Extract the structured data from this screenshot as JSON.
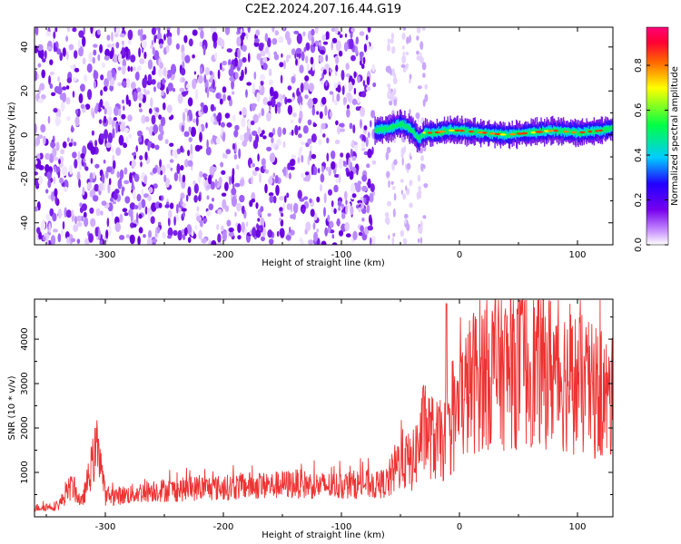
{
  "title": "C2E2.2024.207.16.44.G19",
  "chart_data": [
    {
      "type": "heatmap",
      "xlabel": "Height of straight line (km)",
      "ylabel": "Frequency (Hz)",
      "xlim": [
        -360,
        130
      ],
      "ylim": [
        -50,
        49
      ],
      "xticks": [
        -300,
        -200,
        -100,
        0,
        100
      ],
      "yticks": [
        -40,
        -20,
        0,
        20,
        40
      ],
      "grid": false,
      "colorbar": {
        "label": "Normalized spectral amplitude",
        "range": [
          0,
          0.97
        ],
        "ticks": [
          "0.0",
          "0.2",
          "0.4",
          "0.6",
          "0.8"
        ],
        "colors": [
          "#ffffff",
          "#cc99ff",
          "#7700ee",
          "#2200ff",
          "#00ccff",
          "#00ff44",
          "#ffff00",
          "#ff6600",
          "#ff0033",
          "#ff0077"
        ]
      },
      "regions": [
        {
          "x": [
            -360,
            -72
          ],
          "freq": [
            -50,
            49
          ],
          "description_value": 0.3
        },
        {
          "x": [
            -72,
            130
          ],
          "freq": [
            -3,
            4
          ],
          "description_value": 0.45
        }
      ],
      "signal_curve": {
        "x": [
          -72,
          -60,
          -50,
          -40,
          -35,
          -30,
          -20,
          -10,
          0,
          20,
          40,
          60,
          80,
          100,
          120,
          130
        ],
        "y": [
          2,
          3,
          5,
          2,
          -2,
          1,
          1,
          2,
          2,
          1,
          0,
          1,
          2,
          1,
          2,
          3
        ]
      }
    },
    {
      "type": "line",
      "xlabel": "Height of straight line (km)",
      "ylabel": "SNR (10 * v/v)",
      "xlim": [
        -360,
        130
      ],
      "ylim": [
        0,
        4900
      ],
      "xticks": [
        -300,
        -200,
        -100,
        0,
        100
      ],
      "yticks": [
        1000,
        2000,
        3000,
        4000
      ],
      "grid": false,
      "series": [
        {
          "color": "#ee3333",
          "x": [
            -360,
            -340,
            -328,
            -320,
            -306,
            -300,
            -280,
            -260,
            -240,
            -220,
            -200,
            -180,
            -160,
            -140,
            -120,
            -100,
            -80,
            -70,
            -60,
            -50,
            -40,
            -30,
            -20,
            -10,
            0,
            10,
            20,
            40,
            60,
            80,
            100,
            120,
            130
          ],
          "y": [
            200,
            250,
            700,
            300,
            1700,
            450,
            500,
            600,
            600,
            650,
            650,
            700,
            700,
            750,
            700,
            700,
            750,
            700,
            800,
            1300,
            1200,
            2000,
            1700,
            1700,
            2500,
            3000,
            3300,
            3300,
            3400,
            3300,
            3000,
            2700,
            2600
          ]
        }
      ]
    }
  ]
}
